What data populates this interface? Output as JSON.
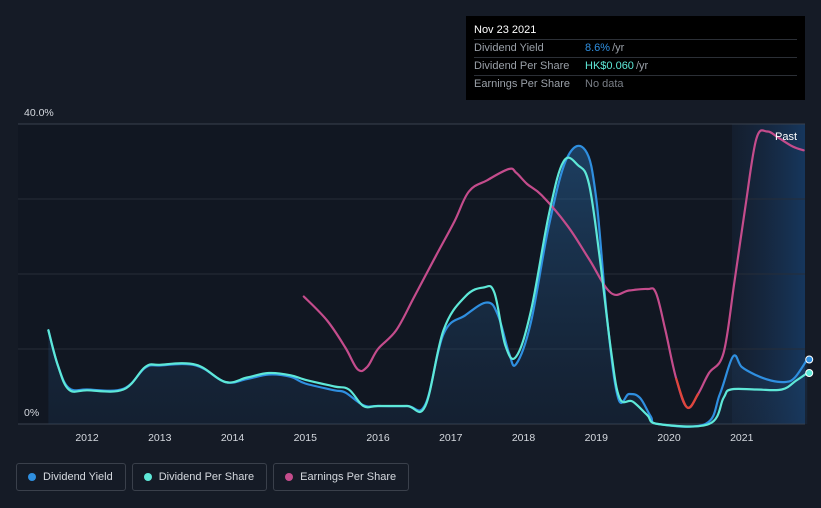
{
  "tooltip": {
    "date": "Nov 23 2021",
    "rows": [
      {
        "label": "Dividend Yield",
        "value": "8.6%",
        "unit": "/yr",
        "color": "#2f8fe0"
      },
      {
        "label": "Dividend Per Share",
        "value": "HK$0.060",
        "unit": "/yr",
        "color": "#5ee8d8"
      },
      {
        "label": "Earnings Per Share",
        "value": "No data",
        "unit": "",
        "color": "#7a7f87"
      }
    ]
  },
  "legend": [
    {
      "label": "Dividend Yield",
      "color": "#2f8fe0"
    },
    {
      "label": "Dividend Per Share",
      "color": "#5ee8d8"
    },
    {
      "label": "Earnings Per Share",
      "color": "#c44c8c"
    }
  ],
  "chart_data": {
    "type": "line",
    "ylim": [
      0,
      40
    ],
    "y_tick_labels": [
      "40.0%",
      "0%"
    ],
    "x_tick_labels": [
      "2012",
      "2013",
      "2014",
      "2015",
      "2016",
      "2017",
      "2018",
      "2019",
      "2020",
      "2021"
    ],
    "past_label": "Past",
    "grid": true,
    "legend_position": "bottom-left",
    "series": [
      {
        "name": "Dividend Yield",
        "color": "#2f8fe0",
        "points": [
          [
            2011.47,
            12.5
          ],
          [
            2011.6,
            7.8
          ],
          [
            2011.75,
            4.8
          ],
          [
            2012.0,
            4.6
          ],
          [
            2012.5,
            4.7
          ],
          [
            2012.8,
            7.5
          ],
          [
            2013.0,
            7.8
          ],
          [
            2013.5,
            7.8
          ],
          [
            2013.9,
            5.6
          ],
          [
            2014.2,
            6.0
          ],
          [
            2014.5,
            6.6
          ],
          [
            2014.8,
            6.3
          ],
          [
            2015.0,
            5.4
          ],
          [
            2015.4,
            4.5
          ],
          [
            2015.55,
            4.2
          ],
          [
            2015.8,
            2.5
          ],
          [
            2016.0,
            2.4
          ],
          [
            2016.4,
            2.4
          ],
          [
            2016.65,
            2.6
          ],
          [
            2016.9,
            12.0
          ],
          [
            2017.2,
            14.5
          ],
          [
            2017.5,
            16.2
          ],
          [
            2017.65,
            14.5
          ],
          [
            2017.8,
            9.5
          ],
          [
            2017.9,
            8.0
          ],
          [
            2018.1,
            13.5
          ],
          [
            2018.35,
            26.5
          ],
          [
            2018.6,
            35.5
          ],
          [
            2018.85,
            36.5
          ],
          [
            2019.0,
            30.0
          ],
          [
            2019.15,
            14.0
          ],
          [
            2019.3,
            3.5
          ],
          [
            2019.45,
            4.0
          ],
          [
            2019.6,
            3.5
          ],
          [
            2019.75,
            1.0
          ],
          [
            2019.85,
            0.0
          ],
          [
            2020.5,
            0.0
          ],
          [
            2020.7,
            4.0
          ],
          [
            2020.88,
            9.0
          ],
          [
            2021.0,
            7.6
          ],
          [
            2021.2,
            6.5
          ],
          [
            2021.4,
            5.8
          ],
          [
            2021.6,
            5.6
          ],
          [
            2021.73,
            6.2
          ],
          [
            2021.9,
            8.6
          ]
        ]
      },
      {
        "name": "Dividend Per Share",
        "color": "#5ee8d8",
        "points": [
          [
            2011.47,
            12.5
          ],
          [
            2011.6,
            7.8
          ],
          [
            2011.75,
            4.6
          ],
          [
            2012.0,
            4.5
          ],
          [
            2012.5,
            4.6
          ],
          [
            2012.8,
            7.6
          ],
          [
            2013.0,
            7.9
          ],
          [
            2013.5,
            7.9
          ],
          [
            2013.9,
            5.6
          ],
          [
            2014.2,
            6.2
          ],
          [
            2014.5,
            6.8
          ],
          [
            2014.8,
            6.5
          ],
          [
            2015.0,
            5.9
          ],
          [
            2015.4,
            5.0
          ],
          [
            2015.6,
            4.6
          ],
          [
            2015.8,
            2.4
          ],
          [
            2016.0,
            2.4
          ],
          [
            2016.4,
            2.4
          ],
          [
            2016.65,
            2.4
          ],
          [
            2016.9,
            12.5
          ],
          [
            2017.2,
            17.0
          ],
          [
            2017.45,
            18.2
          ],
          [
            2017.6,
            17.5
          ],
          [
            2017.75,
            10.5
          ],
          [
            2017.9,
            9.0
          ],
          [
            2018.1,
            15.0
          ],
          [
            2018.35,
            28.0
          ],
          [
            2018.55,
            35.0
          ],
          [
            2018.75,
            34.5
          ],
          [
            2018.9,
            32.0
          ],
          [
            2019.05,
            22.0
          ],
          [
            2019.2,
            10.0
          ],
          [
            2019.32,
            3.5
          ],
          [
            2019.5,
            3.0
          ],
          [
            2019.7,
            1.2
          ],
          [
            2019.85,
            0.0
          ],
          [
            2020.55,
            0.0
          ],
          [
            2020.75,
            3.5
          ],
          [
            2020.85,
            4.6
          ],
          [
            2021.2,
            4.6
          ],
          [
            2021.55,
            4.6
          ],
          [
            2021.75,
            5.8
          ],
          [
            2021.9,
            6.8
          ]
        ]
      },
      {
        "name": "Earnings Per Share",
        "color": "#c44c8c",
        "points": [
          [
            2014.98,
            17.0
          ],
          [
            2015.3,
            13.8
          ],
          [
            2015.55,
            10.2
          ],
          [
            2015.72,
            7.3
          ],
          [
            2015.85,
            7.6
          ],
          [
            2016.0,
            10.0
          ],
          [
            2016.25,
            12.5
          ],
          [
            2016.5,
            17.0
          ],
          [
            2016.8,
            22.5
          ],
          [
            2017.05,
            27.0
          ],
          [
            2017.25,
            31.0
          ],
          [
            2017.5,
            32.5
          ],
          [
            2017.8,
            34.0
          ],
          [
            2017.9,
            33.5
          ],
          [
            2018.05,
            32.0
          ],
          [
            2018.25,
            30.5
          ],
          [
            2018.6,
            26.5
          ],
          [
            2018.9,
            22.0
          ],
          [
            2019.2,
            17.5
          ],
          [
            2019.45,
            17.8
          ],
          [
            2019.7,
            18.0
          ],
          [
            2019.82,
            17.5
          ],
          [
            2019.95,
            12.5
          ],
          [
            2020.1,
            6.0
          ],
          [
            2020.25,
            2.2
          ],
          [
            2020.4,
            4.0
          ],
          [
            2020.55,
            6.8
          ],
          [
            2020.75,
            9.5
          ],
          [
            2020.9,
            19.0
          ],
          [
            2021.05,
            29.0
          ],
          [
            2021.2,
            38.0
          ],
          [
            2021.35,
            39.0
          ],
          [
            2021.5,
            38.2
          ],
          [
            2021.7,
            37.0
          ],
          [
            2021.85,
            36.5
          ]
        ],
        "dip_color": "#e0463a"
      }
    ]
  }
}
